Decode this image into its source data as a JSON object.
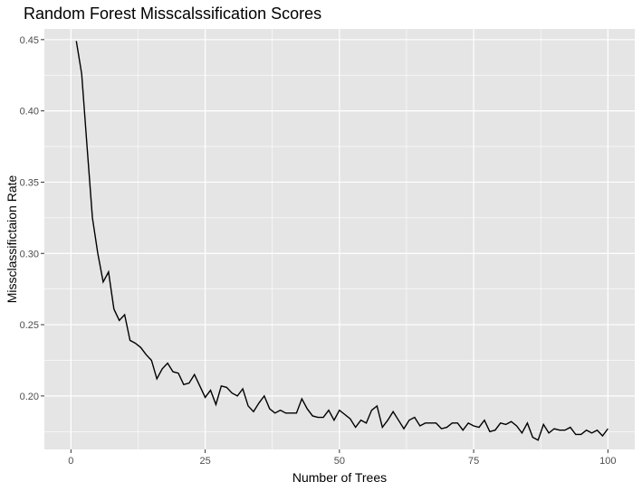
{
  "chart_data": {
    "type": "line",
    "title": "Random Forest Misscalssification Scores",
    "xlabel": "Number of Trees",
    "ylabel": "Missclassifictaion Rate",
    "xlim": [
      -4.95,
      105
    ],
    "ylim": [
      0.1625,
      0.4575
    ],
    "x_ticks": [
      0,
      25,
      50,
      75,
      100
    ],
    "x_tick_labels": [
      "0",
      "25",
      "50",
      "75",
      "100"
    ],
    "y_ticks": [
      0.2,
      0.25,
      0.3,
      0.35,
      0.4,
      0.45
    ],
    "y_tick_labels": [
      "0.20",
      "0.25",
      "0.30",
      "0.35",
      "0.40",
      "0.45"
    ],
    "grid": true,
    "background": "#e5e5e5",
    "grid_color": "#ffffff",
    "line_color": "#000000",
    "series": [
      {
        "x": [
          1,
          2,
          3,
          4,
          5,
          6,
          7,
          8,
          9,
          10,
          11,
          12,
          13,
          14,
          15,
          16,
          17,
          18,
          19,
          20,
          21,
          22,
          23,
          24,
          25,
          26,
          27,
          28,
          29,
          30,
          31,
          32,
          33,
          34,
          35,
          36,
          37,
          38,
          39,
          40,
          41,
          42,
          43,
          44,
          45,
          46,
          47,
          48,
          49,
          50,
          51,
          52,
          53,
          54,
          55,
          56,
          57,
          58,
          59,
          60,
          61,
          62,
          63,
          64,
          65,
          66,
          67,
          68,
          69,
          70,
          71,
          72,
          73,
          74,
          75,
          76,
          77,
          78,
          79,
          80,
          81,
          82,
          83,
          84,
          85,
          86,
          87,
          88,
          89,
          90,
          91,
          92,
          93,
          94,
          95,
          96,
          97,
          98,
          99,
          100
        ],
        "values": [
          0.449,
          0.426,
          0.375,
          0.325,
          0.3,
          0.28,
          0.287,
          0.261,
          0.253,
          0.257,
          0.239,
          0.237,
          0.234,
          0.229,
          0.225,
          0.212,
          0.219,
          0.223,
          0.217,
          0.216,
          0.208,
          0.209,
          0.215,
          0.207,
          0.199,
          0.204,
          0.194,
          0.207,
          0.206,
          0.202,
          0.2,
          0.205,
          0.193,
          0.189,
          0.195,
          0.2,
          0.191,
          0.188,
          0.19,
          0.188,
          0.188,
          0.188,
          0.198,
          0.191,
          0.186,
          0.185,
          0.185,
          0.19,
          0.183,
          0.19,
          0.187,
          0.184,
          0.178,
          0.183,
          0.181,
          0.19,
          0.193,
          0.178,
          0.183,
          0.189,
          0.183,
          0.177,
          0.183,
          0.185,
          0.179,
          0.181,
          0.181,
          0.181,
          0.177,
          0.178,
          0.181,
          0.181,
          0.176,
          0.181,
          0.179,
          0.178,
          0.183,
          0.175,
          0.176,
          0.181,
          0.18,
          0.182,
          0.179,
          0.174,
          0.181,
          0.171,
          0.169,
          0.18,
          0.174,
          0.177,
          0.176,
          0.176,
          0.178,
          0.173,
          0.173,
          0.176,
          0.174,
          0.176,
          0.172,
          0.177
        ]
      }
    ]
  }
}
